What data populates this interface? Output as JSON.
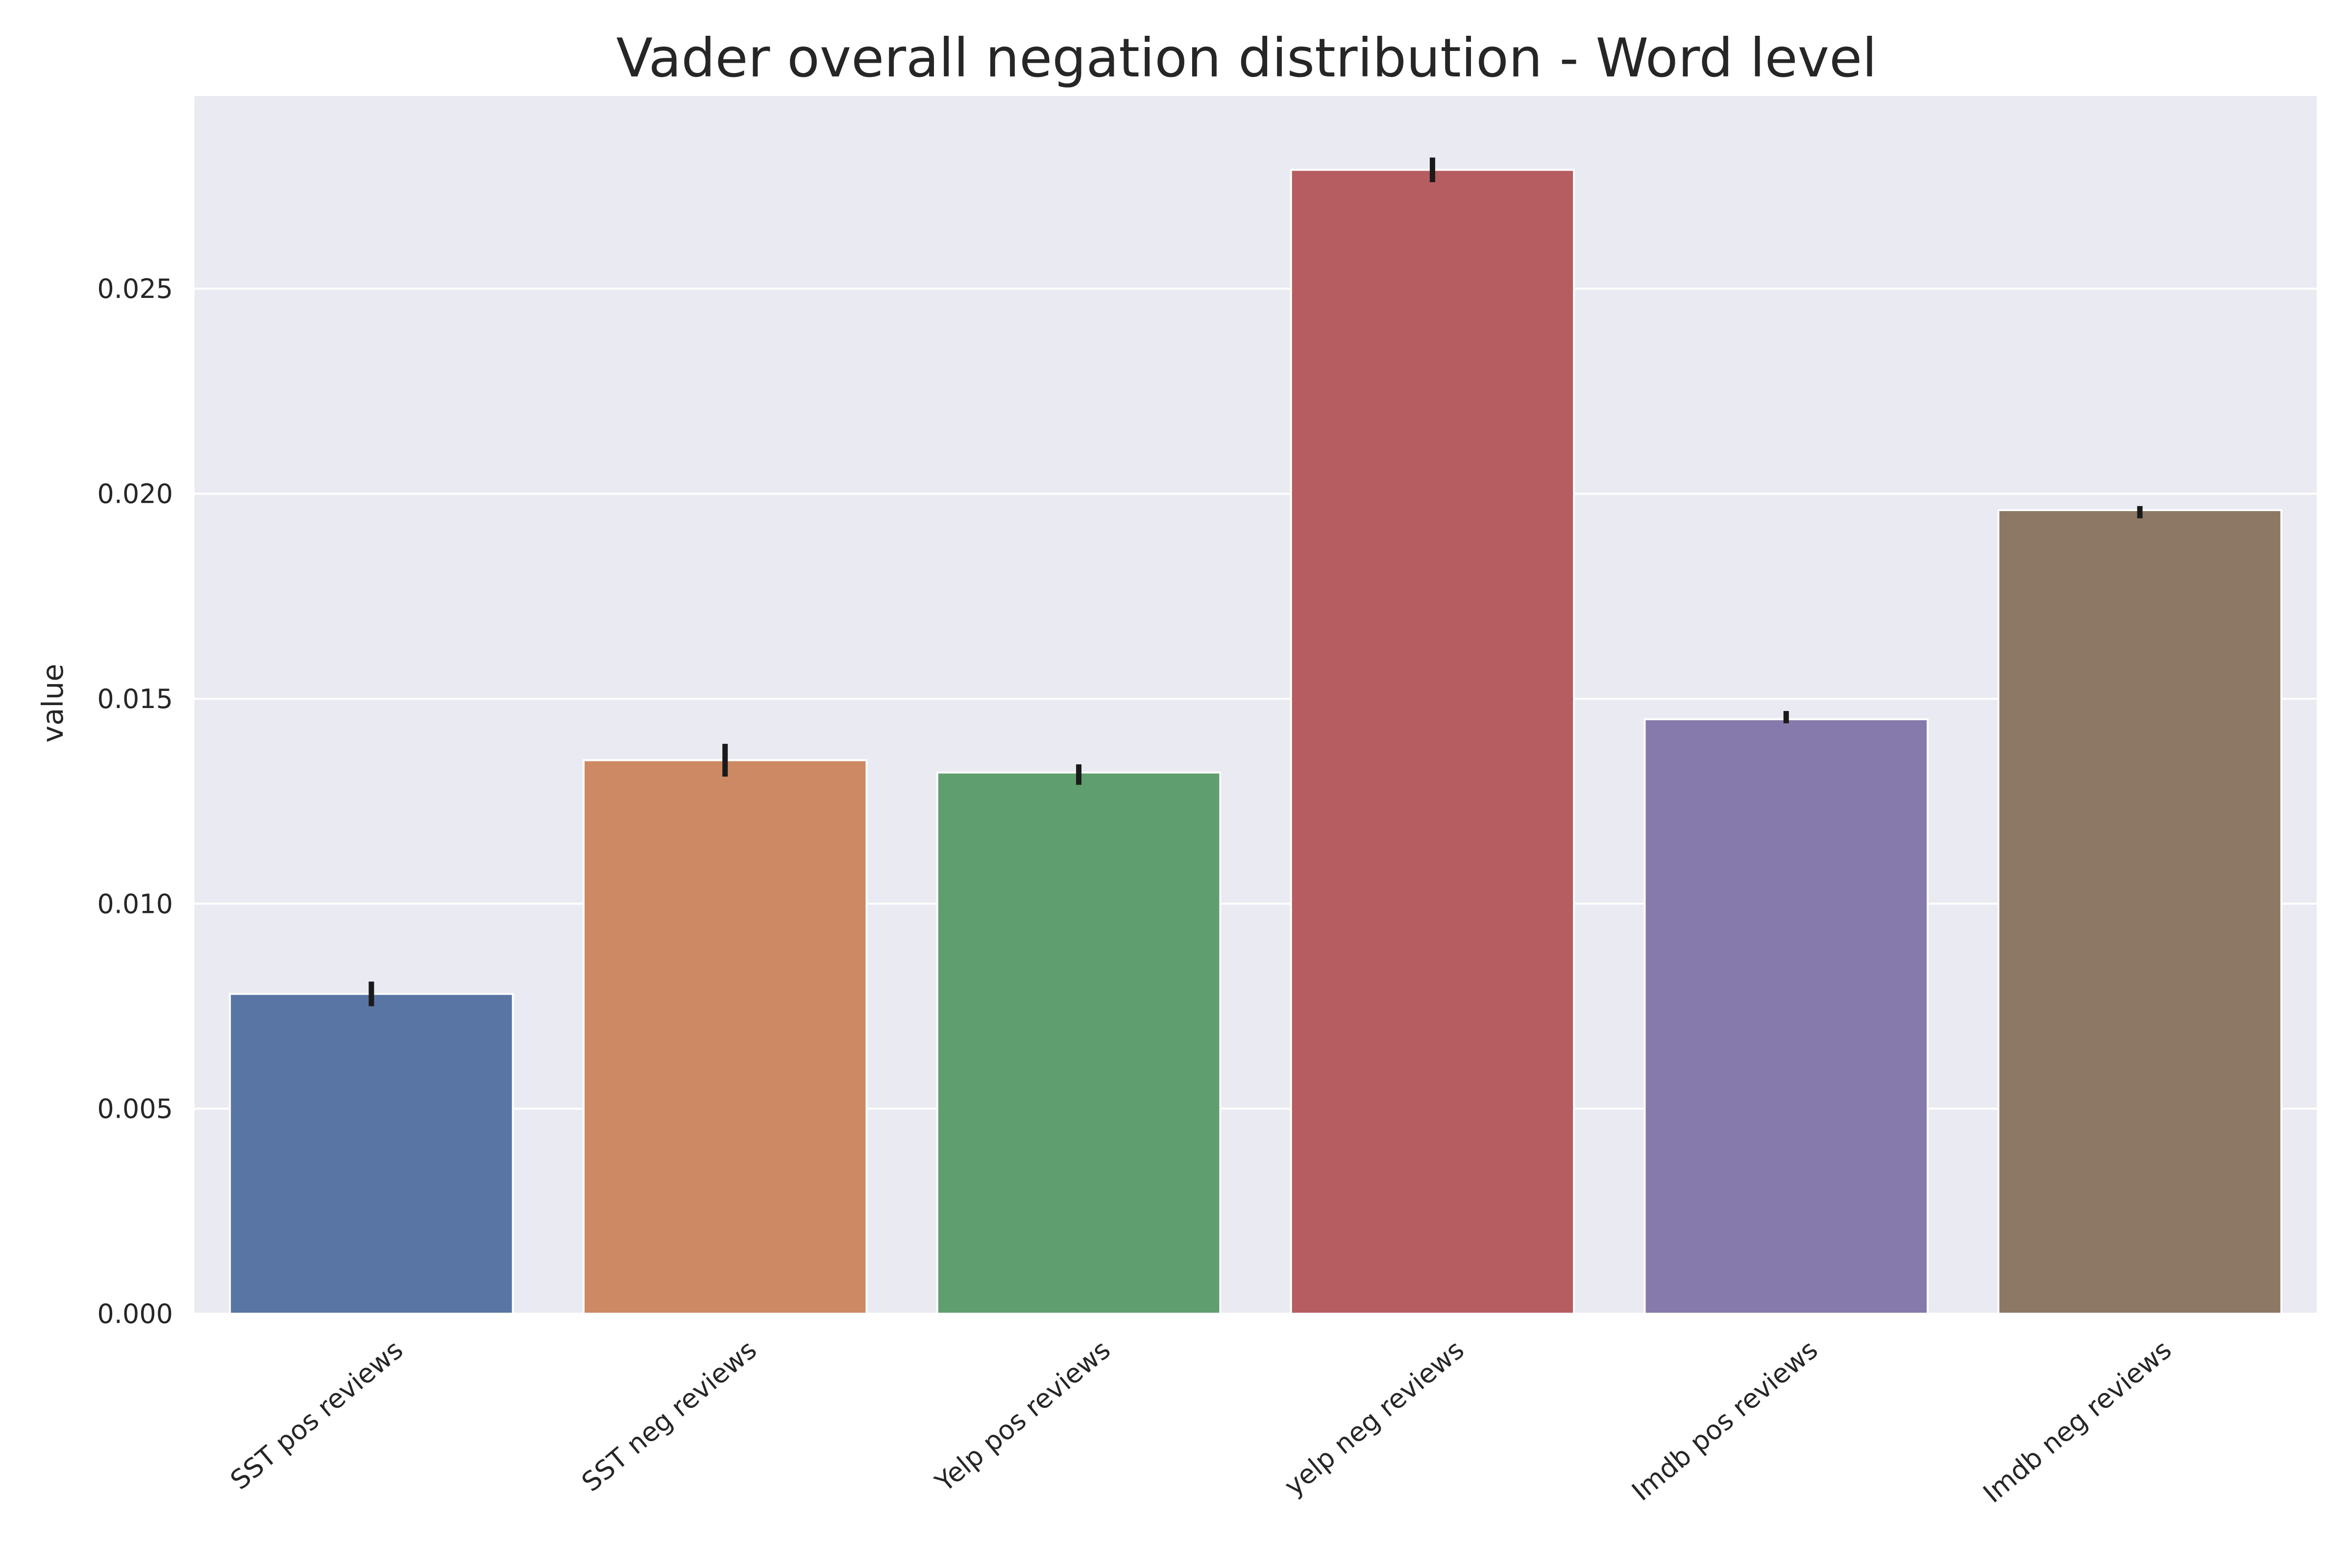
{
  "chart_data": {
    "type": "bar",
    "title": "Vader overall negation distribution - Word level",
    "xlabel": "",
    "ylabel": "value",
    "ylim": [
      0,
      0.0297
    ],
    "yticks": [
      "0.000",
      "0.005",
      "0.010",
      "0.015",
      "0.020",
      "0.025"
    ],
    "ytick_values": [
      0,
      0.005,
      0.01,
      0.015,
      0.02,
      0.025
    ],
    "grid": true,
    "categories": [
      "SST pos reviews",
      "SST neg reviews",
      "Yelp pos reviews",
      "yelp neg reviews",
      "Imdb pos reviews",
      "Imdb neg reviews"
    ],
    "values": [
      0.0078,
      0.0135,
      0.0132,
      0.0279,
      0.0145,
      0.0196
    ],
    "error_low": [
      0.0075,
      0.0131,
      0.0129,
      0.0276,
      0.0144,
      0.0194
    ],
    "error_high": [
      0.0081,
      0.0139,
      0.0134,
      0.0282,
      0.0147,
      0.0197
    ],
    "colors": [
      "#5975a4",
      "#cc8963",
      "#5f9e6e",
      "#b55d60",
      "#857aab",
      "#8d7866"
    ],
    "background": "#eaeaf2"
  }
}
